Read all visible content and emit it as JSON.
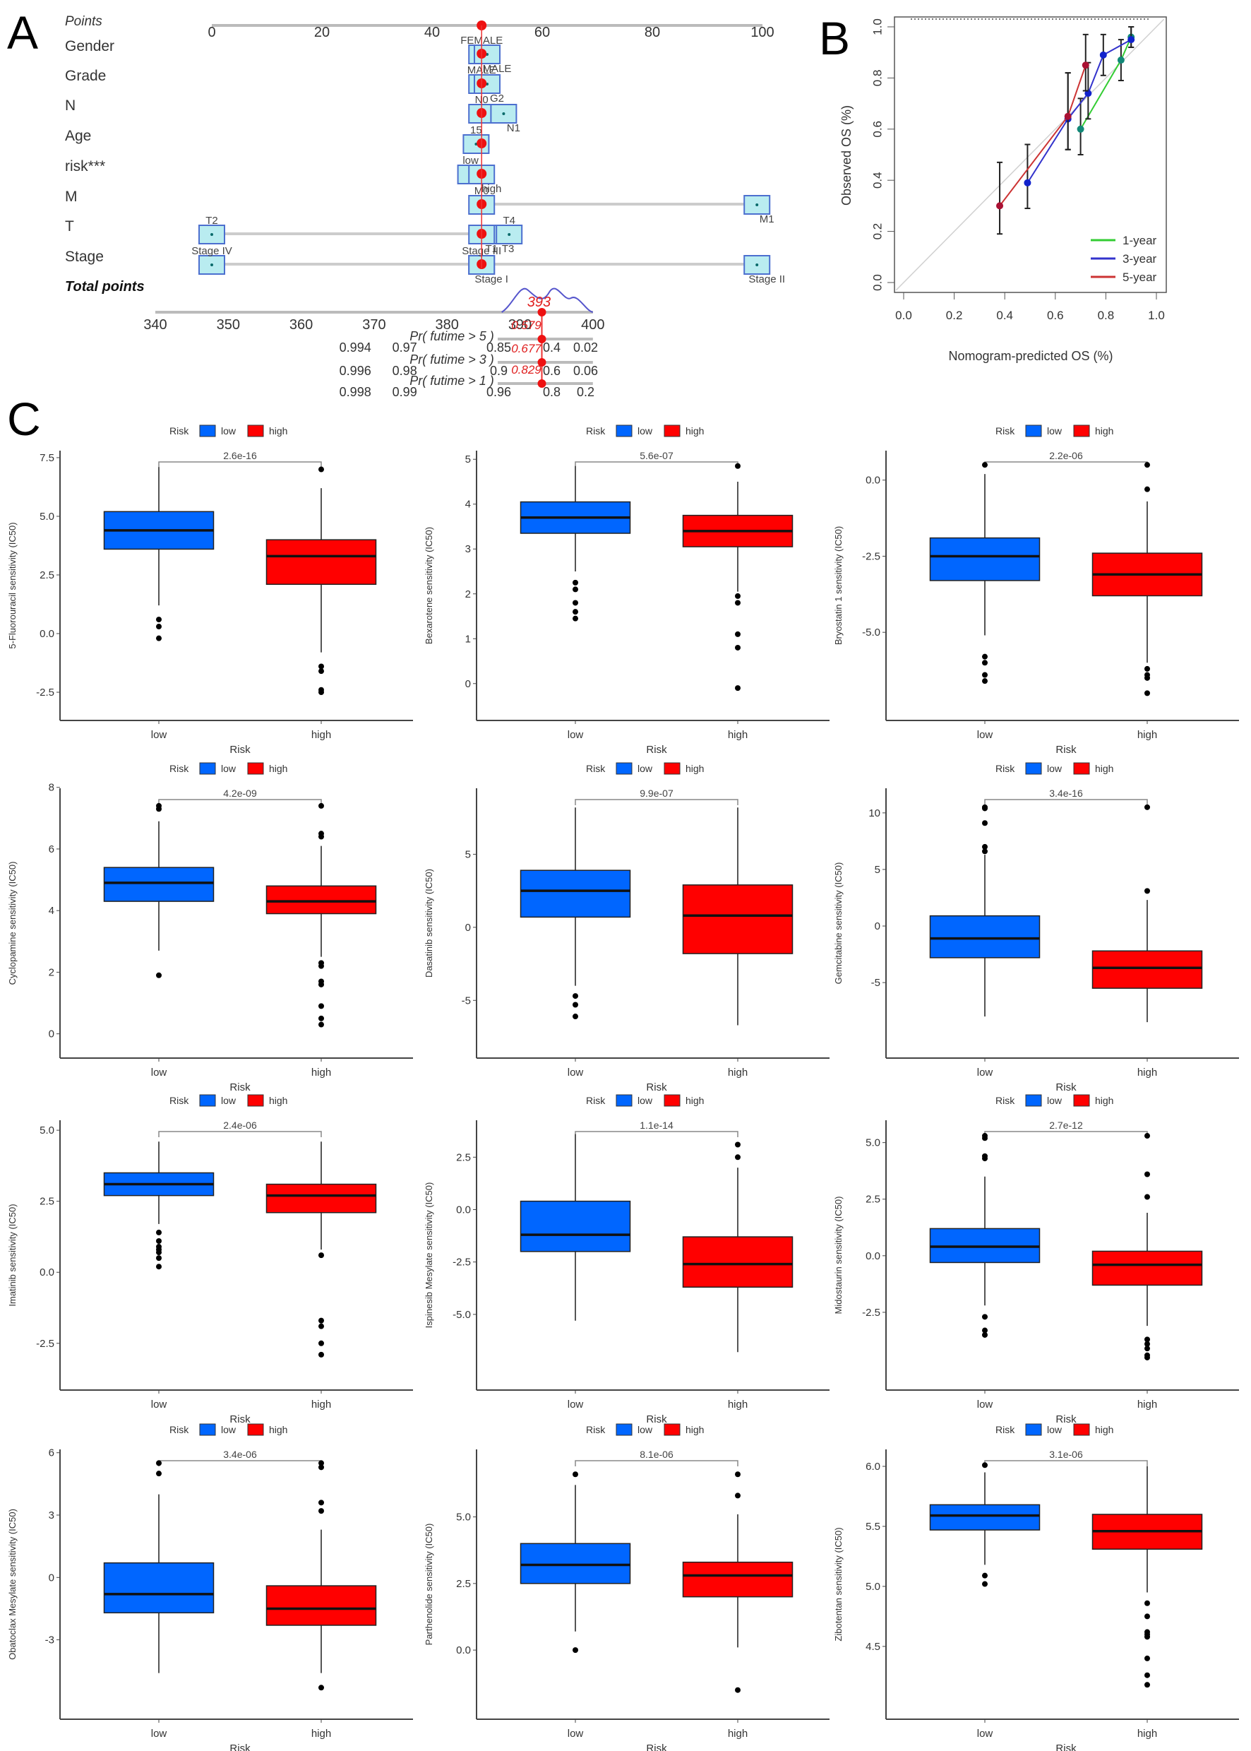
{
  "panels": {
    "a_label": "A",
    "b_label": "B",
    "c_label": "C"
  },
  "chart_data": [
    {
      "id": "A",
      "type": "nomogram",
      "title": "",
      "points_axis": {
        "label": "Points",
        "range": [
          0,
          100
        ],
        "ticks": [
          0,
          20,
          40,
          60,
          80,
          100
        ]
      },
      "rows": [
        {
          "name": "Gender",
          "levels": [
            {
              "label": "FEMALE",
              "points": 49
            },
            {
              "label": "MALE",
              "points": 50
            }
          ]
        },
        {
          "name": "Grade",
          "levels": [
            {
              "label": "MALE",
              "points": 49
            },
            {
              "label": "G2",
              "points": 50
            }
          ]
        },
        {
          "name": "N",
          "levels": [
            {
              "label": "N0",
              "points": 49
            },
            {
              "label": "N1",
              "points": 53
            }
          ]
        },
        {
          "name": "Age",
          "levels": [
            {
              "label": "15",
              "points": 48
            }
          ]
        },
        {
          "name": "risk***",
          "levels": [
            {
              "label": "low",
              "points": 47
            },
            {
              "label": "high",
              "points": 49
            }
          ]
        },
        {
          "name": "M",
          "levels": [
            {
              "label": "M0",
              "points": 49
            },
            {
              "label": "M1",
              "points": 99
            }
          ]
        },
        {
          "name": "T",
          "levels": [
            {
              "label": "T2",
              "points": 0
            },
            {
              "label": "T3",
              "points": 52
            },
            {
              "label": "T4",
              "points": 54
            },
            {
              "label": "T1",
              "points": 49
            }
          ]
        },
        {
          "name": "Stage",
          "levels": [
            {
              "label": "Stage IV",
              "points": 0
            },
            {
              "label": "Stage I",
              "points": 49
            },
            {
              "label": "Stage III",
              "points": 49
            },
            {
              "label": "Stage II",
              "points": 99
            }
          ]
        }
      ],
      "total_points_axis": {
        "label": "Total points",
        "range": [
          340,
          400
        ],
        "ticks": [
          340,
          350,
          360,
          370,
          380,
          390,
          400
        ]
      },
      "selected_total": 393,
      "selected_points": 49,
      "prob_rows": [
        {
          "label": "Pr( futime > 5 )",
          "ticks": [
            "0.994",
            "0.97",
            "0.85",
            "0.4",
            "0.02"
          ],
          "value": "0.579"
        },
        {
          "label": "Pr( futime > 3 )",
          "ticks": [
            "0.996",
            "0.98",
            "0.9",
            "0.6",
            "0.06"
          ],
          "value": "0.677"
        },
        {
          "label": "Pr( futime > 1 )",
          "ticks": [
            "0.998",
            "0.99",
            "0.96",
            "0.8",
            "0.2"
          ],
          "value": "0.829"
        }
      ]
    },
    {
      "id": "B",
      "type": "line",
      "title": "",
      "xlabel": "Nomogram-predicted OS (%)",
      "ylabel": "Observed OS (%)",
      "xlim": [
        0,
        1
      ],
      "ylim": [
        0,
        1
      ],
      "xticks": [
        "0.0",
        "0.2",
        "0.4",
        "0.6",
        "0.8",
        "1.0"
      ],
      "yticks": [
        "0.0",
        "0.2",
        "0.4",
        "0.6",
        "0.8",
        "1.0"
      ],
      "legend_position": "bottom-right",
      "series": [
        {
          "name": "1-year",
          "color": "#33cc33",
          "points": [
            {
              "x": 0.7,
              "y": 0.6,
              "lo": 0.5,
              "hi": 0.72
            },
            {
              "x": 0.86,
              "y": 0.87,
              "lo": 0.79,
              "hi": 0.95
            },
            {
              "x": 0.9,
              "y": 0.96,
              "lo": 0.92,
              "hi": 1.0
            }
          ]
        },
        {
          "name": "3-year",
          "color": "#3333cc",
          "points": [
            {
              "x": 0.49,
              "y": 0.39,
              "lo": 0.29,
              "hi": 0.54
            },
            {
              "x": 0.65,
              "y": 0.64,
              "lo": 0.52,
              "hi": 0.82
            },
            {
              "x": 0.73,
              "y": 0.74,
              "lo": 0.64,
              "hi": 0.86
            },
            {
              "x": 0.79,
              "y": 0.89,
              "lo": 0.81,
              "hi": 0.97
            },
            {
              "x": 0.9,
              "y": 0.95,
              "lo": 0.92,
              "hi": 1.0
            }
          ]
        },
        {
          "name": "5-year",
          "color": "#cc3333",
          "points": [
            {
              "x": 0.38,
              "y": 0.3,
              "lo": 0.19,
              "hi": 0.47
            },
            {
              "x": 0.65,
              "y": 0.65,
              "lo": 0.52,
              "hi": 0.82
            },
            {
              "x": 0.72,
              "y": 0.85,
              "lo": 0.75,
              "hi": 0.97
            }
          ]
        }
      ]
    },
    {
      "id": "C",
      "type": "box",
      "legend": {
        "title": "Risk",
        "entries": [
          {
            "label": "low",
            "color": "#0066ff"
          },
          {
            "label": "high",
            "color": "#ff0000"
          }
        ]
      },
      "xlabel": "Risk",
      "categories": [
        "low",
        "high"
      ],
      "plots": [
        {
          "ylabel": "5-Fluorouracil sensitivity (IC50)",
          "pvalue": "2.6e-16",
          "yticks": [
            "-2.5",
            "0.0",
            "2.5",
            "5.0",
            "7.5"
          ],
          "ylim": [
            -2.8,
            8.1
          ],
          "low": {
            "q1": 3.6,
            "median": 4.4,
            "q3": 5.2,
            "wlo": 1.2,
            "whi": 7.1,
            "outliers": [
              0.6,
              0.3,
              -0.2
            ]
          },
          "high": {
            "q1": 2.1,
            "median": 3.3,
            "q3": 4.0,
            "wlo": -0.8,
            "whi": 6.2,
            "outliers": [
              7.0,
              -1.4,
              -1.6,
              -2.4,
              -2.5
            ]
          }
        },
        {
          "ylabel": "Bexarotene sensitivity (IC50)",
          "pvalue": "5.6e-07",
          "yticks": [
            "0",
            "1",
            "2",
            "3",
            "4",
            "5"
          ],
          "ylim": [
            -0.35,
            5.35
          ],
          "low": {
            "q1": 3.35,
            "median": 3.7,
            "q3": 4.05,
            "wlo": 2.5,
            "whi": 4.85,
            "outliers": [
              2.25,
              2.1,
              1.8,
              1.6,
              1.45
            ]
          },
          "high": {
            "q1": 3.05,
            "median": 3.4,
            "q3": 3.75,
            "wlo": 2.05,
            "whi": 4.5,
            "outliers": [
              4.85,
              1.95,
              1.8,
              1.1,
              0.8,
              -0.1
            ]
          }
        },
        {
          "ylabel": "Bryostatin 1 sensitivity (IC50)",
          "pvalue": "2.2e-06",
          "yticks": [
            "-5.0",
            "-2.5",
            "0.0"
          ],
          "ylim": [
            -7.2,
            1.2
          ],
          "low": {
            "q1": -3.3,
            "median": -2.5,
            "q3": -1.9,
            "wlo": -5.1,
            "whi": 0.2,
            "outliers": [
              0.5,
              -5.8,
              -6.0,
              -6.4,
              -6.6
            ]
          },
          "high": {
            "q1": -3.8,
            "median": -3.1,
            "q3": -2.4,
            "wlo": -6.0,
            "whi": -0.7,
            "outliers": [
              0.5,
              -0.3,
              -6.2,
              -6.4,
              -6.5,
              -7.0
            ]
          }
        },
        {
          "ylabel": "Cyclopamine sensitivity (IC50)",
          "pvalue": "4.2e-09",
          "yticks": [
            "0",
            "2",
            "4",
            "6",
            "8"
          ],
          "ylim": [
            -0.1,
            8.2
          ],
          "low": {
            "q1": 4.3,
            "median": 4.9,
            "q3": 5.4,
            "wlo": 2.7,
            "whi": 6.9,
            "outliers": [
              7.4,
              7.3,
              1.9
            ]
          },
          "high": {
            "q1": 3.9,
            "median": 4.3,
            "q3": 4.8,
            "wlo": 2.5,
            "whi": 6.1,
            "outliers": [
              7.4,
              6.5,
              6.4,
              2.3,
              2.2,
              1.7,
              1.6,
              0.9,
              0.5,
              0.3
            ]
          }
        },
        {
          "ylabel": "Dasatinib sensitivity (IC50)",
          "pvalue": "9.9e-07",
          "yticks": [
            "-5",
            "0",
            "5"
          ],
          "ylim": [
            -7.5,
            10
          ],
          "low": {
            "q1": 0.7,
            "median": 2.5,
            "q3": 3.9,
            "wlo": -4.0,
            "whi": 8.2,
            "outliers": [
              -4.7,
              -5.3,
              -6.1
            ]
          },
          "high": {
            "q1": -1.8,
            "median": 0.8,
            "q3": 2.9,
            "wlo": -6.7,
            "whi": 8.2,
            "outliers": []
          }
        },
        {
          "ylabel": "Gemcitabine sensitivity (IC50)",
          "pvalue": "3.4e-16",
          "yticks": [
            "-5",
            "0",
            "5",
            "10"
          ],
          "ylim": [
            -9.8,
            12.8
          ],
          "low": {
            "q1": -2.8,
            "median": -1.1,
            "q3": 0.9,
            "wlo": -8.0,
            "whi": 6.3,
            "outliers": [
              10.5,
              10.4,
              9.1,
              7.0,
              6.6
            ]
          },
          "high": {
            "q1": -5.5,
            "median": -3.7,
            "q3": -2.2,
            "wlo": -8.5,
            "whi": 2.3,
            "outliers": [
              10.5,
              3.1
            ]
          }
        },
        {
          "ylabel": "Imatinib sensitivity (IC50)",
          "pvalue": "2.4e-06",
          "yticks": [
            "-2.5",
            "0.0",
            "2.5",
            "5.0"
          ],
          "ylim": [
            -3.4,
            5.6
          ],
          "low": {
            "q1": 2.7,
            "median": 3.1,
            "q3": 3.5,
            "wlo": 1.7,
            "whi": 4.6,
            "outliers": [
              1.4,
              1.1,
              0.9,
              0.8,
              0.7,
              0.5,
              0.2
            ]
          },
          "high": {
            "q1": 2.1,
            "median": 2.7,
            "q3": 3.1,
            "wlo": 0.8,
            "whi": 4.6,
            "outliers": [
              0.6,
              -1.7,
              -1.9,
              -2.5,
              -2.9
            ]
          }
        },
        {
          "ylabel": "Ispinesib Mesylate sensitivity (IC50)",
          "pvalue": "1.1e-14",
          "yticks": [
            "-5.0",
            "-2.5",
            "0.0",
            "2.5"
          ],
          "ylim": [
            -7.6,
            4.6
          ],
          "low": {
            "q1": -2.0,
            "median": -1.2,
            "q3": 0.4,
            "wlo": -5.3,
            "whi": 3.6,
            "outliers": []
          },
          "high": {
            "q1": -3.7,
            "median": -2.6,
            "q3": -1.3,
            "wlo": -6.8,
            "whi": 2.0,
            "outliers": [
              3.1,
              2.5
            ]
          }
        },
        {
          "ylabel": "Midostaurin sensitivity (IC50)",
          "pvalue": "2.7e-12",
          "yticks": [
            "-2.5",
            "0.0",
            "2.5",
            "5.0"
          ],
          "ylim": [
            -5.0,
            6.3
          ],
          "low": {
            "q1": -0.3,
            "median": 0.4,
            "q3": 1.2,
            "wlo": -2.2,
            "whi": 3.5,
            "outliers": [
              5.3,
              5.2,
              4.4,
              4.3,
              -2.7,
              -3.3,
              -3.5
            ]
          },
          "high": {
            "q1": -1.3,
            "median": -0.4,
            "q3": 0.2,
            "wlo": -3.1,
            "whi": 1.9,
            "outliers": [
              5.3,
              3.6,
              2.6,
              -3.7,
              -3.9,
              -4.1,
              -4.4,
              -4.5
            ]
          }
        },
        {
          "ylabel": "Obatoclax Mesylate sensitivity (IC50)",
          "pvalue": "3.4e-06",
          "yticks": [
            "-3",
            "0",
            "3",
            "6"
          ],
          "ylim": [
            -5.8,
            6.5
          ],
          "low": {
            "q1": -1.7,
            "median": -0.8,
            "q3": 0.7,
            "wlo": -4.6,
            "whi": 4.0,
            "outliers": [
              5.5,
              5.0
            ]
          },
          "high": {
            "q1": -2.3,
            "median": -1.5,
            "q3": -0.4,
            "wlo": -4.6,
            "whi": 2.3,
            "outliers": [
              5.5,
              5.3,
              3.6,
              3.2,
              -5.3
            ]
          }
        },
        {
          "ylabel": "Parthenolide sensitivity (IC50)",
          "pvalue": "8.1e-06",
          "yticks": [
            "0.0",
            "2.5",
            "5.0"
          ],
          "ylim": [
            -1.8,
            7.8
          ],
          "low": {
            "q1": 2.5,
            "median": 3.2,
            "q3": 4.0,
            "wlo": 0.7,
            "whi": 6.2,
            "outliers": [
              6.6,
              0.0
            ]
          },
          "high": {
            "q1": 2.0,
            "median": 2.8,
            "q3": 3.3,
            "wlo": 0.1,
            "whi": 5.1,
            "outliers": [
              6.6,
              5.8,
              -1.5
            ]
          }
        },
        {
          "ylabel": "Zibotentan sensitivity (IC50)",
          "pvalue": "3.1e-06",
          "yticks": [
            "4.5",
            "5.0",
            "5.5",
            "6.0"
          ],
          "ylim": [
            4.07,
            6.2
          ],
          "low": {
            "q1": 5.47,
            "median": 5.59,
            "q3": 5.68,
            "wlo": 5.18,
            "whi": 5.95,
            "outliers": [
              6.01,
              5.09,
              5.02
            ]
          },
          "high": {
            "q1": 5.31,
            "median": 5.46,
            "q3": 5.6,
            "wlo": 4.95,
            "whi": 6.0,
            "outliers": [
              4.86,
              4.75,
              4.62,
              4.6,
              4.58,
              4.4,
              4.26,
              4.18
            ]
          }
        }
      ]
    }
  ]
}
